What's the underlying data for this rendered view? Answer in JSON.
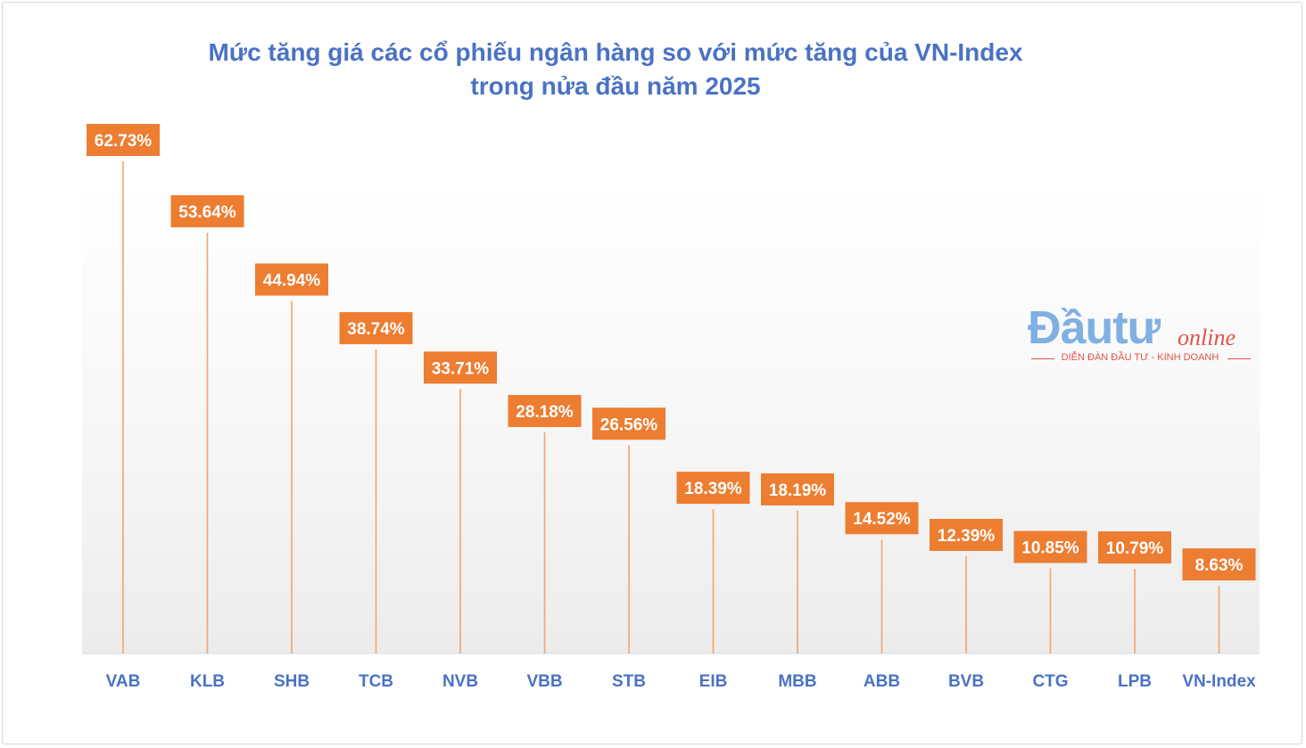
{
  "chart_data": {
    "type": "bar",
    "title_line1": "Mức tăng giá các cổ phiếu ngân hàng so với mức tăng của VN-Index",
    "title_line2": "trong nửa đầu năm 2025",
    "categories": [
      "VAB",
      "KLB",
      "SHB",
      "TCB",
      "NVB",
      "VBB",
      "STB",
      "EIB",
      "MBB",
      "ABB",
      "BVB",
      "CTG",
      "LPB",
      "VN-Index"
    ],
    "values": [
      62.73,
      53.64,
      44.94,
      38.74,
      33.71,
      28.18,
      26.56,
      18.39,
      18.19,
      14.52,
      12.39,
      10.85,
      10.79,
      8.63
    ],
    "labels": [
      "62.73%",
      "53.64%",
      "44.94%",
      "38.74%",
      "33.71%",
      "28.18%",
      "26.56%",
      "18.39%",
      "18.19%",
      "14.52%",
      "12.39%",
      "10.85%",
      "10.79%",
      "8.63%"
    ],
    "ylim": [
      0,
      63
    ],
    "grid": false,
    "legend": "none",
    "colors": {
      "bar": "#f4a46a",
      "label_bg": "#ed7d31",
      "label_text": "#ffffff",
      "category_text": "#4a72c4",
      "title": "#4a72c4"
    }
  },
  "watermark": {
    "main": "Đầutư",
    "sub": "online",
    "tagline": "DIỄN ĐÀN ĐẦU TƯ - KINH DOANH"
  }
}
